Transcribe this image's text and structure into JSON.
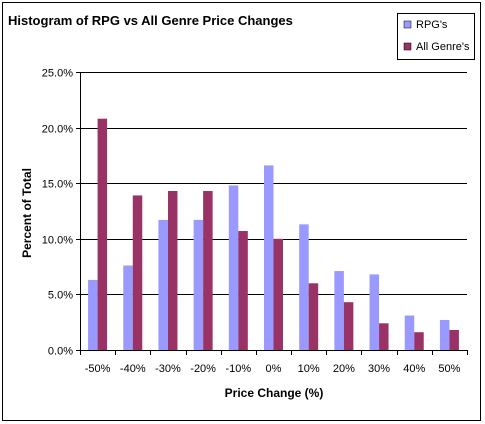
{
  "chart_data": {
    "type": "bar",
    "title": "Histogram of RPG vs All Genre Price Changes",
    "xlabel": "Price Change (%)",
    "ylabel": "Percent of Total",
    "categories": [
      "-50%",
      "-40%",
      "-30%",
      "-20%",
      "-10%",
      "0%",
      "10%",
      "20%",
      "30%",
      "40%",
      "50%"
    ],
    "series": [
      {
        "name": "RPG's",
        "color": "#9999FF",
        "values": [
          6.3,
          7.6,
          11.7,
          11.7,
          14.8,
          16.6,
          11.3,
          7.1,
          6.8,
          3.1,
          2.7
        ]
      },
      {
        "name": "All Genre's",
        "color": "#993366",
        "values": [
          20.8,
          13.9,
          14.3,
          14.3,
          10.7,
          10.0,
          6.0,
          4.3,
          2.4,
          1.6,
          1.8
        ]
      }
    ],
    "ylim": [
      0,
      25
    ],
    "yticks": [
      "0.0%",
      "5.0%",
      "10.0%",
      "15.0%",
      "20.0%",
      "25.0%"
    ],
    "ytick_values": [
      0,
      5,
      10,
      15,
      20,
      25
    ],
    "grid": true,
    "legend": "top-right"
  }
}
